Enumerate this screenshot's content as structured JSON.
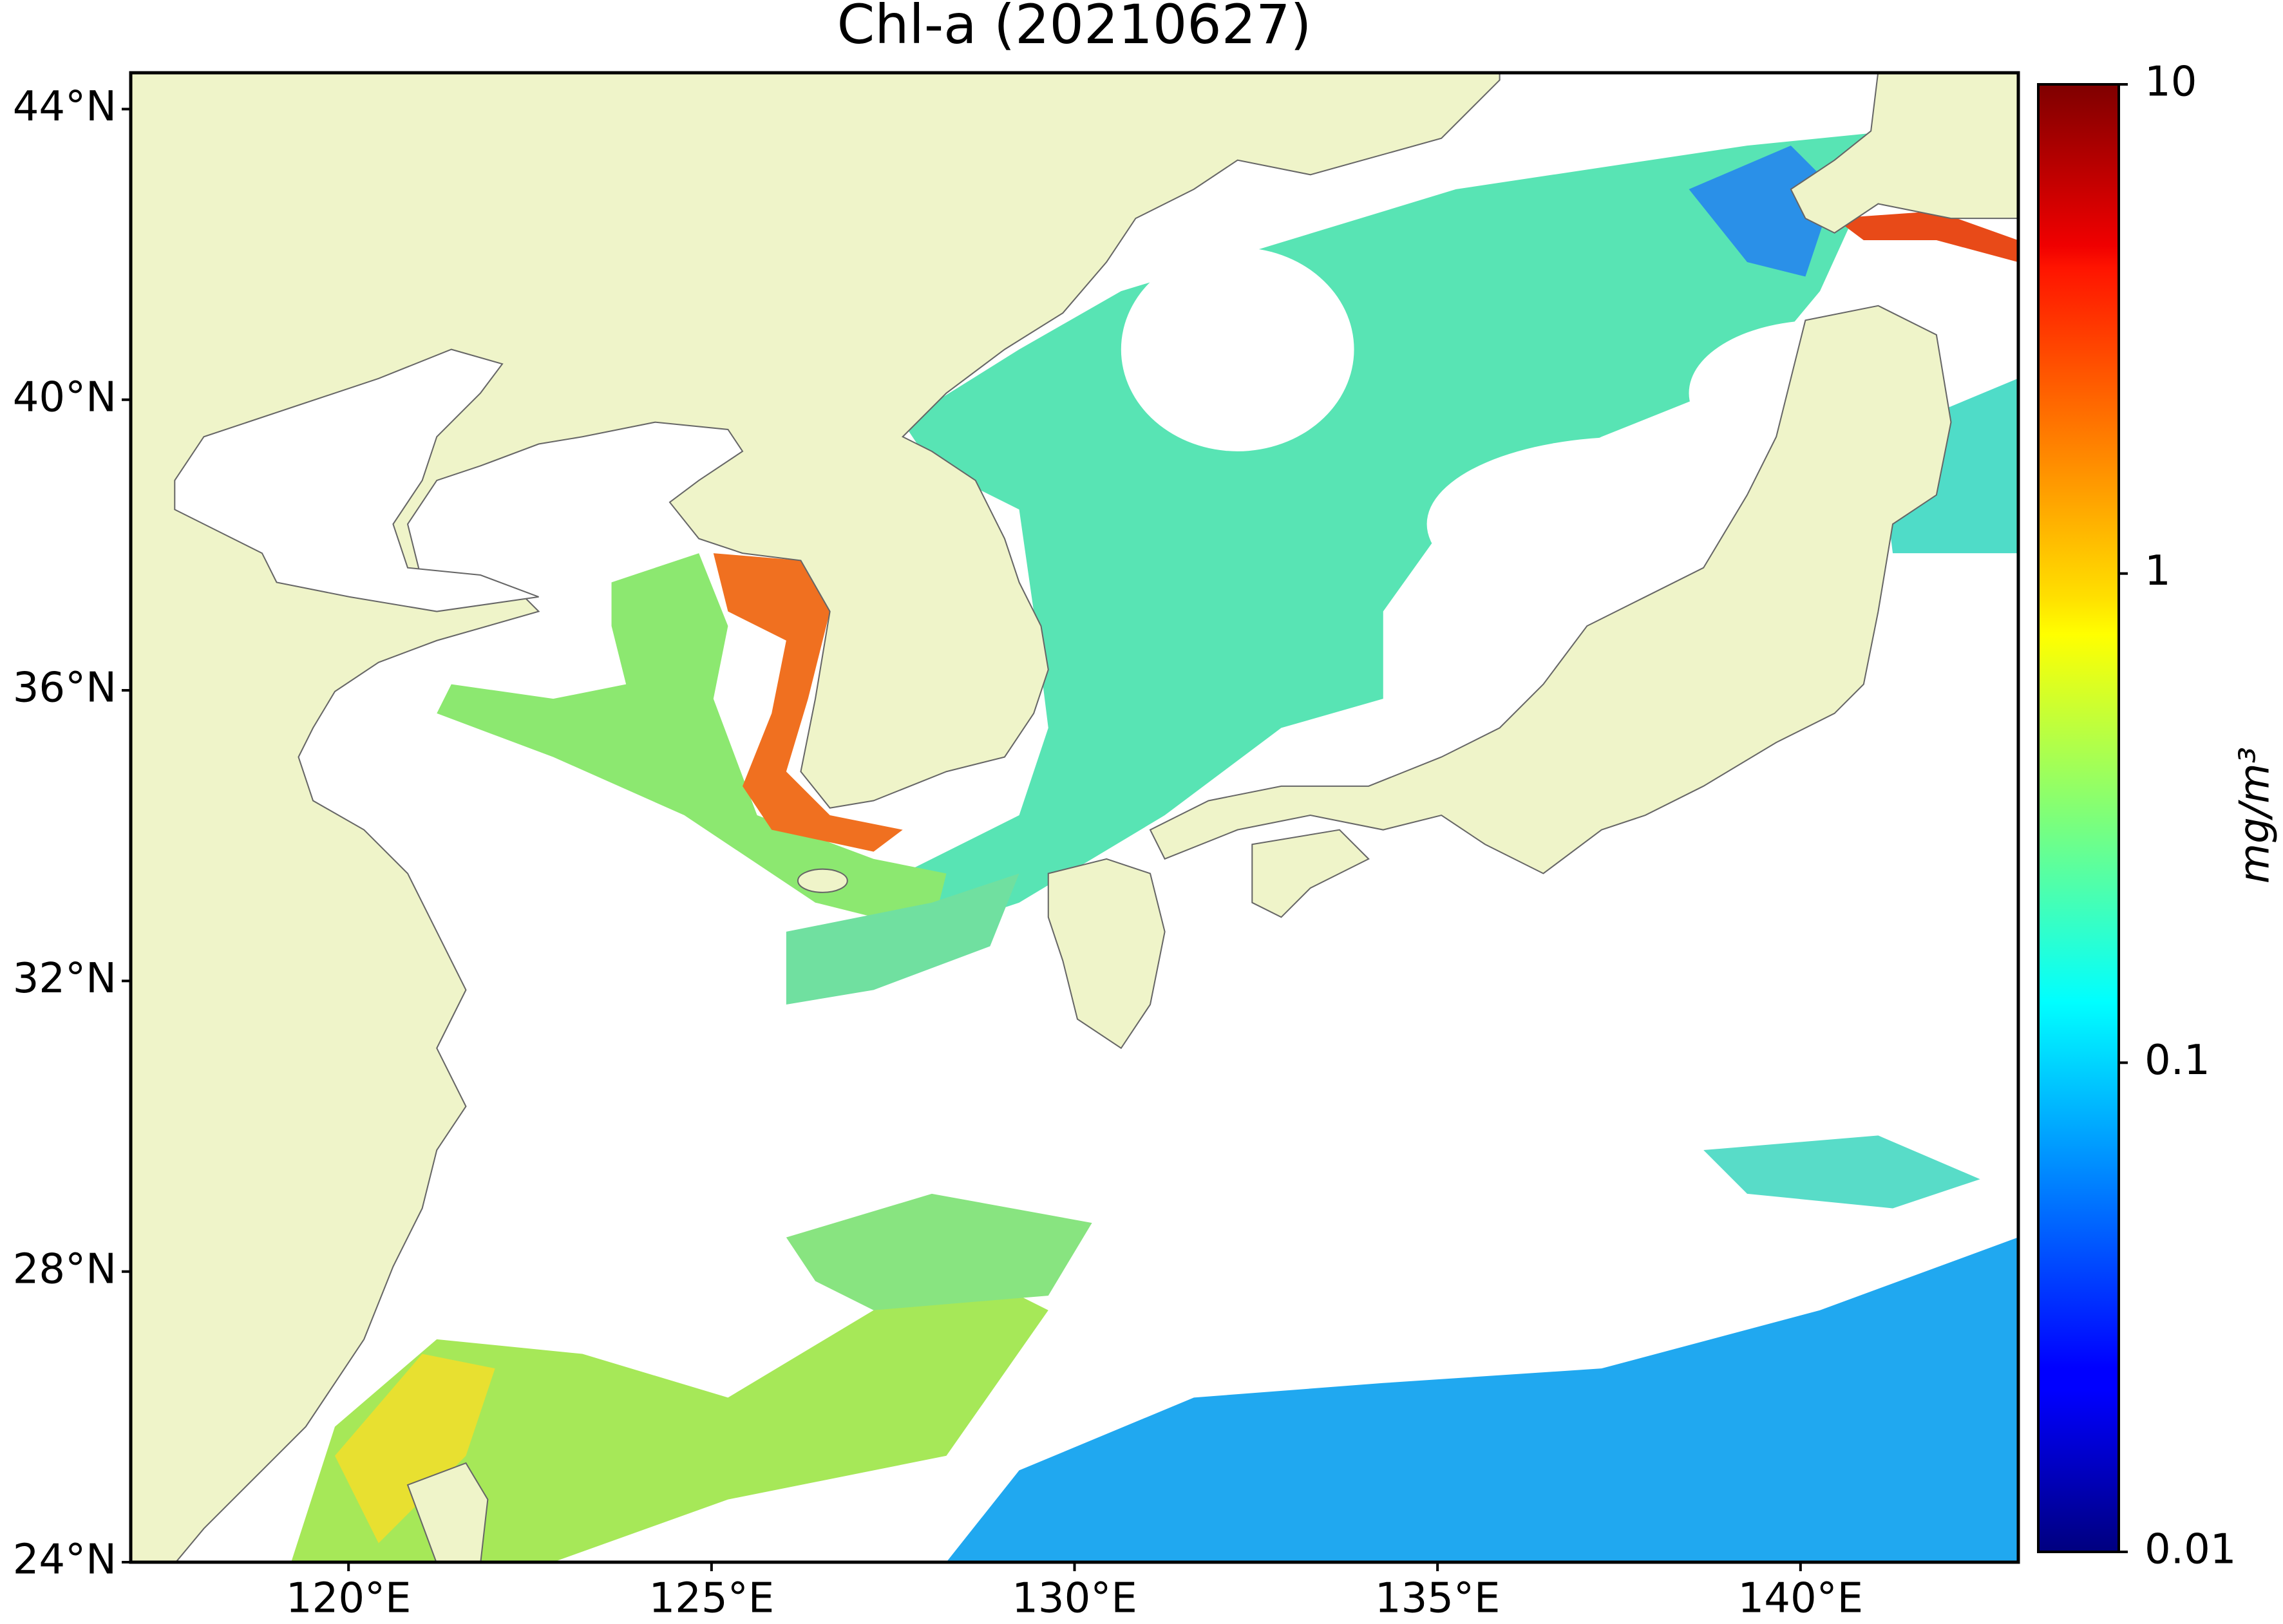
{
  "chart_data": {
    "type": "map",
    "title": "Chl-a (20210627)",
    "xlim": [
      117,
      143
    ],
    "xticks": [
      {
        "value": 120,
        "label": "120°E"
      },
      {
        "value": 125,
        "label": "125°E"
      },
      {
        "value": 130,
        "label": "130°E"
      },
      {
        "value": 135,
        "label": "135°E"
      },
      {
        "value": 140,
        "label": "140°E"
      }
    ],
    "ylim": [
      24,
      44.5
    ],
    "yticks": [
      {
        "value": 24,
        "label": "24°N"
      },
      {
        "value": 28,
        "label": "28°N"
      },
      {
        "value": 32,
        "label": "32°N"
      },
      {
        "value": 36,
        "label": "36°N"
      },
      {
        "value": 40,
        "label": "40°N"
      },
      {
        "value": 44,
        "label": "44°N"
      }
    ],
    "colorbar": {
      "label": "mg/m³",
      "lim": [
        0.01,
        10
      ],
      "ticks": [
        0.01,
        0.1,
        1,
        10
      ],
      "log": true,
      "colormap": "jet"
    }
  }
}
